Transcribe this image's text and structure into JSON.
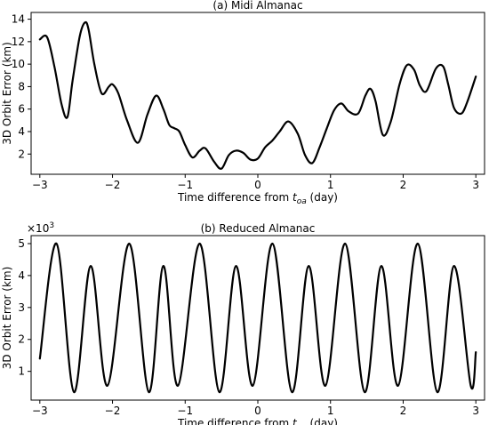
{
  "chart_data": [
    {
      "type": "line",
      "title": "(a) Midi Almanac",
      "xlabel_prefix": "Time difference from ",
      "xlabel_sub_base": "t",
      "xlabel_sub": "oa",
      "xlabel_suffix": " (day)",
      "ylabel": "3D Orbit Error (km)",
      "xlim": [
        -3.12,
        3.12
      ],
      "ylim": [
        0.2,
        14.6
      ],
      "xticks": [
        -3,
        -2,
        -1,
        0,
        1,
        2,
        3
      ],
      "xtick_labels": [
        "−3",
        "−2",
        "−1",
        "0",
        "1",
        "2",
        "3"
      ],
      "yticks": [
        2,
        4,
        6,
        8,
        10,
        12,
        14
      ],
      "ytick_labels": [
        "2",
        "4",
        "6",
        "8",
        "10",
        "12",
        "14"
      ],
      "grid": false,
      "color": "#000000",
      "series": [
        {
          "x": [
            -3.0,
            -2.9,
            -2.8,
            -2.7,
            -2.62,
            -2.55,
            -2.45,
            -2.38,
            -2.33,
            -2.25,
            -2.15,
            -2.05,
            -2.0,
            -1.92,
            -1.8,
            -1.65,
            -1.52,
            -1.4,
            -1.3,
            -1.22,
            -1.15,
            -1.08,
            -1.0,
            -0.9,
            -0.8,
            -0.72,
            -0.6,
            -0.5,
            -0.4,
            -0.3,
            -0.2,
            -0.1,
            0.0,
            0.1,
            0.2,
            0.3,
            0.42,
            0.55,
            0.65,
            0.75,
            0.85,
            0.95,
            1.05,
            1.15,
            1.25,
            1.38,
            1.48,
            1.55,
            1.62,
            1.72,
            1.83,
            1.95,
            2.05,
            2.15,
            2.23,
            2.32,
            2.45,
            2.55,
            2.62,
            2.7,
            2.8,
            2.88,
            3.0
          ],
          "y": [
            12.2,
            12.4,
            9.8,
            6.4,
            5.3,
            8.5,
            12.5,
            13.7,
            13.1,
            10.0,
            7.4,
            8.0,
            8.2,
            7.4,
            5.0,
            3.0,
            5.5,
            7.2,
            6.0,
            4.6,
            4.3,
            4.0,
            2.8,
            1.7,
            2.3,
            2.5,
            1.3,
            0.7,
            1.9,
            2.3,
            2.1,
            1.5,
            1.6,
            2.6,
            3.2,
            4.0,
            4.9,
            3.8,
            1.9,
            1.2,
            2.6,
            4.3,
            5.9,
            6.5,
            5.8,
            5.6,
            7.2,
            7.8,
            6.7,
            3.7,
            4.9,
            8.2,
            9.9,
            9.5,
            8.1,
            7.6,
            9.6,
            9.8,
            8.2,
            6.1,
            5.6,
            6.6,
            8.9
          ]
        }
      ]
    },
    {
      "type": "line",
      "title": "(b) Reduced Almanac",
      "multiplier_base": "×10",
      "multiplier_exp": "3",
      "xlabel_prefix": "Time difference from ",
      "xlabel_sub_base": "t",
      "xlabel_sub": "oa",
      "xlabel_suffix": " (day)",
      "ylabel": "3D Orbit Error (km)",
      "xlim": [
        -3.12,
        3.12
      ],
      "ylim": [
        0.1,
        5.25
      ],
      "xticks": [
        -3,
        -2,
        -1,
        0,
        1,
        2,
        3
      ],
      "xtick_labels": [
        "−3",
        "−2",
        "−1",
        "0",
        "1",
        "2",
        "3"
      ],
      "yticks": [
        1,
        2,
        3,
        4,
        5
      ],
      "ytick_labels": [
        "1",
        "2",
        "3",
        "4",
        "5"
      ],
      "grid": false,
      "color": "#000000",
      "series": [
        {
          "x": [
            -3.0,
            -2.77,
            -2.53,
            -2.3,
            -2.07,
            -1.77,
            -1.5,
            -1.3,
            -1.1,
            -0.8,
            -0.53,
            -0.3,
            -0.07,
            0.2,
            0.47,
            0.7,
            0.93,
            1.2,
            1.47,
            1.7,
            1.93,
            2.2,
            2.47,
            2.7,
            2.93,
            3.0
          ],
          "y": [
            1.4,
            5.0,
            0.35,
            4.3,
            0.55,
            5.0,
            0.35,
            4.3,
            0.55,
            5.0,
            0.35,
            4.3,
            0.55,
            5.0,
            0.35,
            4.3,
            0.55,
            5.0,
            0.35,
            4.3,
            0.55,
            5.0,
            0.35,
            4.3,
            0.55,
            1.6
          ]
        }
      ]
    }
  ]
}
